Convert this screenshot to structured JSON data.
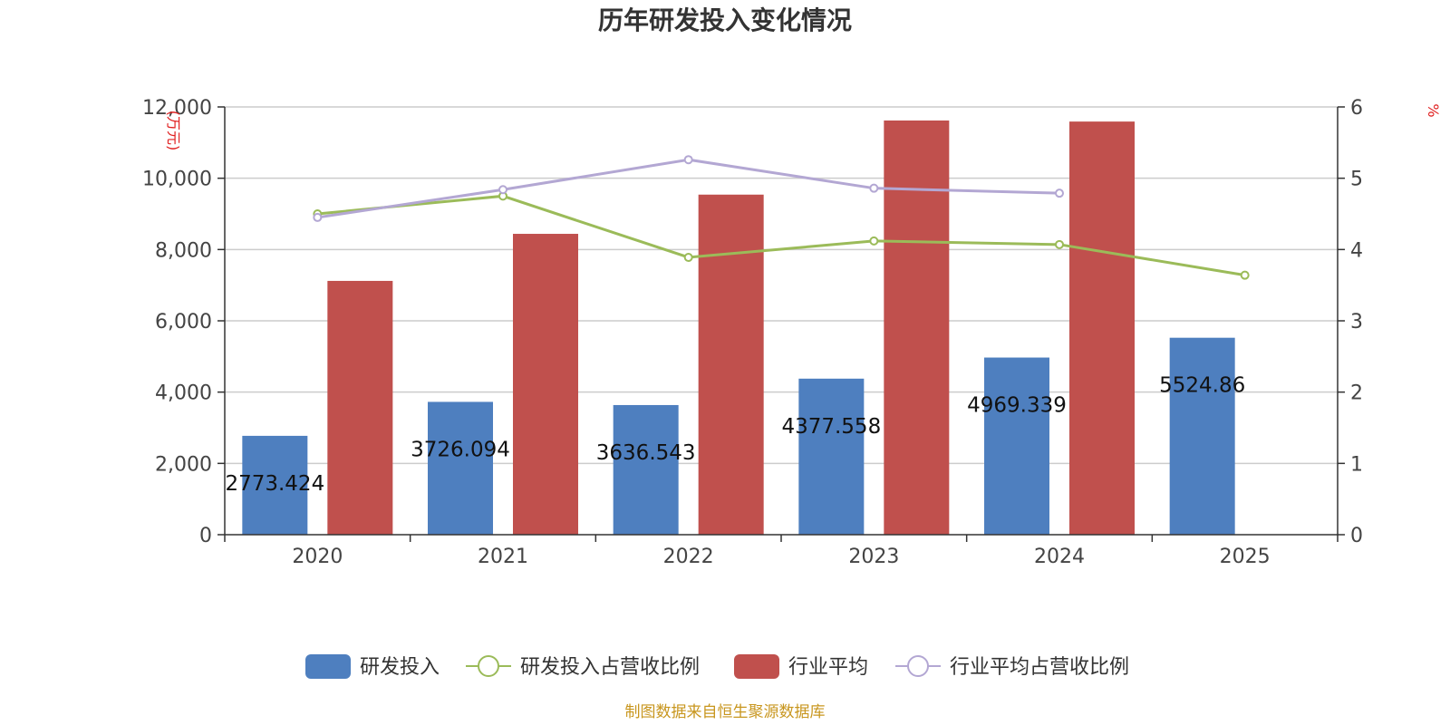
{
  "chart_data": {
    "type": "bar",
    "title": "历年研发投入变化情况",
    "categories": [
      "2020",
      "2021",
      "2022",
      "2023",
      "2024",
      "2025"
    ],
    "left_axis": {
      "unit": "(万元)",
      "ylim": [
        0,
        12000
      ],
      "ticks": [
        0,
        2000,
        4000,
        6000,
        8000,
        10000,
        12000
      ],
      "tick_labels": [
        "0",
        "2,000",
        "4,000",
        "6,000",
        "8,000",
        "10,000",
        "12,000"
      ]
    },
    "right_axis": {
      "unit": "%",
      "ylim": [
        0,
        6
      ],
      "ticks": [
        0,
        1,
        2,
        3,
        4,
        5,
        6
      ],
      "tick_labels": [
        "0",
        "1",
        "2",
        "3",
        "4",
        "5",
        "6"
      ]
    },
    "series": [
      {
        "name": "研发投入",
        "type": "bar",
        "axis": "left",
        "color": "#4e7fbf",
        "values": [
          2773.424,
          3726.094,
          3636.543,
          4377.558,
          4969.339,
          5524.86
        ],
        "labels": [
          "2773.424",
          "3726.094",
          "3636.543",
          "4377.558",
          "4969.339",
          "5524.86"
        ]
      },
      {
        "name": "研发投入占营收比例",
        "type": "line",
        "axis": "right",
        "color": "#9bbb59",
        "values": [
          4.5,
          4.75,
          3.89,
          4.12,
          4.07,
          3.64
        ]
      },
      {
        "name": "行业平均",
        "type": "bar",
        "axis": "left",
        "color": "#c0504d",
        "values": [
          7120,
          8440,
          9540,
          11620,
          11590,
          null
        ]
      },
      {
        "name": "行业平均占营收比例",
        "type": "line",
        "axis": "right",
        "color": "#b3a7d3",
        "values": [
          4.45,
          4.84,
          5.26,
          4.86,
          4.79,
          null
        ]
      }
    ],
    "grid": true,
    "legend_position": "bottom"
  },
  "source_text": "制图数据来自恒生聚源数据库"
}
